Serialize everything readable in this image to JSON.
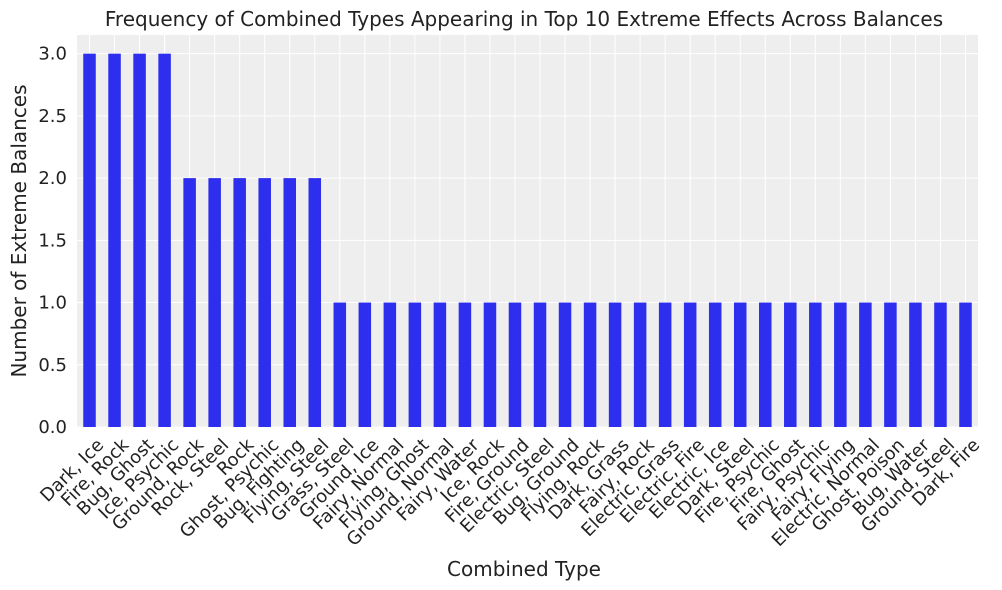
{
  "chart_data": {
    "type": "bar",
    "title": "Frequency of Combined Types Appearing in Top 10 Extreme Effects Across Balances",
    "xlabel": "Combined Type",
    "ylabel": "Number of Extreme Balances",
    "categories": [
      "Dark, Ice",
      "Fire, Rock",
      "Bug, Ghost",
      "Ice, Psychic",
      "Ground, Rock",
      "Rock, Steel",
      "Rock",
      "Ghost, Psychic",
      "Bug, Fighting",
      "Flying, Steel",
      "Grass, Steel",
      "Ground, Ice",
      "Fairy, Normal",
      "Flying, Ghost",
      "Ground, Normal",
      "Fairy, Water",
      "Ice, Rock",
      "Fire, Ground",
      "Electric, Steel",
      "Bug, Ground",
      "Flying, Rock",
      "Dark, Grass",
      "Fairy, Rock",
      "Electric, Grass",
      "Electric, Fire",
      "Electric, Ice",
      "Dark, Steel",
      "Fire, Psychic",
      "Fire, Ghost",
      "Fairy, Psychic",
      "Fairy, Flying",
      "Electric, Normal",
      "Ghost, Poison",
      "Bug, Water",
      "Ground, Steel",
      "Dark, Fire"
    ],
    "values": [
      3,
      3,
      3,
      3,
      2,
      2,
      2,
      2,
      2,
      2,
      1,
      1,
      1,
      1,
      1,
      1,
      1,
      1,
      1,
      1,
      1,
      1,
      1,
      1,
      1,
      1,
      1,
      1,
      1,
      1,
      1,
      1,
      1,
      1,
      1,
      1
    ],
    "ylim": [
      0,
      3.15
    ],
    "yticks": [
      "0.0",
      "0.5",
      "1.0",
      "1.5",
      "2.0",
      "2.5",
      "3.0"
    ],
    "grid": true,
    "colors": {
      "bar": "#2e2eef",
      "plot_bg": "#eeeeee",
      "grid": "#ffffff"
    }
  }
}
